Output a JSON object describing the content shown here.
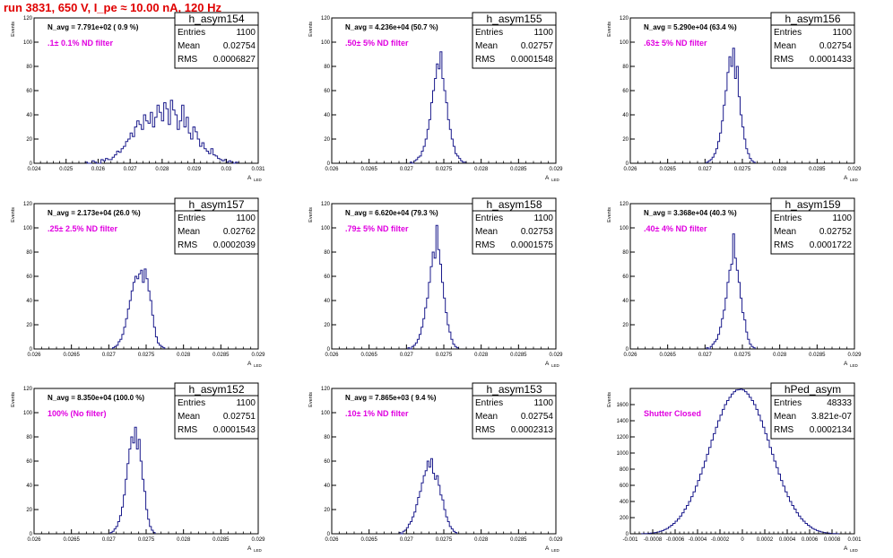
{
  "header": {
    "title": "run 3831,   650 V, I_pe ≈ 10.00 nA, 120 Hz"
  },
  "stat_labels": {
    "entries": "Entries",
    "mean": "Mean",
    "rms": "RMS"
  },
  "axis_labels": {
    "y": "Events",
    "x": "A",
    "x_sub": "LED"
  },
  "colors": {
    "histogram": "#1b1b8c",
    "title": "#e00000",
    "filter": "#e000e0",
    "frame": "#000000"
  },
  "chart_data": [
    {
      "type": "bar",
      "name": "h_asym154",
      "nlabel": "N_avg = 7.791e+02 ( 0.9 %)",
      "filter": ".1± 0.1% ND filter",
      "entries": "1100",
      "mean": "0.02754",
      "rms": "0.0006827",
      "xlim": [
        0.024,
        0.031
      ],
      "ylim": [
        0,
        120
      ],
      "xticks": [
        "0.024",
        "0.025",
        "0.026",
        "0.027",
        "0.028",
        "0.029",
        "0.03",
        "0.031"
      ],
      "xtick_values": [
        0.024,
        0.025,
        0.026,
        0.027,
        0.028,
        0.029,
        0.03,
        0.031
      ],
      "yticks": [
        "0",
        "20",
        "40",
        "60",
        "80",
        "100",
        "120"
      ],
      "bin_start": 0.0256,
      "bin_width": 7e-05,
      "values": [
        1,
        0,
        0,
        2,
        1,
        0,
        0,
        3,
        2,
        4,
        3,
        3,
        5,
        7,
        10,
        9,
        12,
        14,
        18,
        20,
        25,
        22,
        30,
        35,
        32,
        28,
        40,
        35,
        33,
        42,
        30,
        38,
        48,
        42,
        35,
        50,
        45,
        32,
        52,
        44,
        40,
        28,
        35,
        48,
        30,
        38,
        25,
        20,
        30,
        26,
        20,
        14,
        17,
        12,
        10,
        8,
        12,
        7,
        6,
        4,
        3,
        2,
        3,
        1,
        2,
        1,
        0,
        1
      ]
    },
    {
      "type": "bar",
      "name": "h_asym155",
      "nlabel": "N_avg = 4.236e+04 (50.7 %)",
      "filter": ".50± 5% ND filter",
      "entries": "1100",
      "mean": "0.02757",
      "rms": "0.0001548",
      "xlim": [
        0.026,
        0.029
      ],
      "ylim": [
        0,
        120
      ],
      "xticks": [
        "0.026",
        "0.0265",
        "0.027",
        "0.0275",
        "0.028",
        "0.0285",
        "0.029"
      ],
      "xtick_values": [
        0.026,
        0.0265,
        0.027,
        0.0275,
        0.028,
        0.0285,
        0.029
      ],
      "yticks": [
        "0",
        "20",
        "40",
        "60",
        "80",
        "100",
        "120"
      ],
      "bin_start": 0.02705,
      "bin_width": 2.5e-05,
      "values": [
        1,
        0,
        2,
        3,
        5,
        6,
        10,
        14,
        20,
        28,
        36,
        50,
        60,
        70,
        82,
        78,
        92,
        70,
        60,
        50,
        36,
        28,
        20,
        14,
        8,
        6,
        4,
        2,
        1,
        1
      ]
    },
    {
      "type": "bar",
      "name": "h_asym156",
      "nlabel": "N_avg = 5.290e+04 (63.4 %)",
      "filter": ".63± 5% ND filter",
      "entries": "1100",
      "mean": "0.02754",
      "rms": "0.0001433",
      "xlim": [
        0.026,
        0.029
      ],
      "ylim": [
        0,
        120
      ],
      "xticks": [
        "0.026",
        "0.0265",
        "0.027",
        "0.0275",
        "0.028",
        "0.0285",
        "0.029"
      ],
      "xtick_values": [
        0.026,
        0.0265,
        0.027,
        0.0275,
        0.028,
        0.0285,
        0.029
      ],
      "yticks": [
        "0",
        "20",
        "40",
        "60",
        "80",
        "100",
        "120"
      ],
      "bin_start": 0.02702,
      "bin_width": 2.5e-05,
      "values": [
        1,
        2,
        3,
        5,
        8,
        12,
        18,
        25,
        35,
        48,
        60,
        75,
        88,
        80,
        95,
        70,
        80,
        55,
        40,
        30,
        20,
        12,
        8,
        4,
        2,
        1
      ]
    },
    {
      "type": "bar",
      "name": "h_asym157",
      "nlabel": "N_avg = 2.173e+04 (26.0 %)",
      "filter": ".25± 2.5% ND filter",
      "entries": "1100",
      "mean": "0.02762",
      "rms": "0.0002039",
      "xlim": [
        0.026,
        0.029
      ],
      "ylim": [
        0,
        120
      ],
      "xticks": [
        "0.026",
        "0.0265",
        "0.027",
        "0.0275",
        "0.028",
        "0.0285",
        "0.029"
      ],
      "xtick_values": [
        0.026,
        0.0265,
        0.027,
        0.0275,
        0.028,
        0.0285,
        0.029
      ],
      "yticks": [
        "0",
        "20",
        "40",
        "60",
        "80",
        "100",
        "120"
      ],
      "bin_start": 0.02705,
      "bin_width": 2.5e-05,
      "values": [
        1,
        2,
        3,
        6,
        8,
        12,
        18,
        25,
        33,
        40,
        48,
        55,
        60,
        58,
        62,
        65,
        55,
        66,
        58,
        48,
        40,
        28,
        18,
        10,
        5,
        3,
        2,
        1
      ]
    },
    {
      "type": "bar",
      "name": "h_asym158",
      "nlabel": "N_avg = 6.620e+04 (79.3 %)",
      "filter": ".79± 5% ND filter",
      "entries": "1100",
      "mean": "0.02753",
      "rms": "0.0001575",
      "xlim": [
        0.026,
        0.029
      ],
      "ylim": [
        0,
        120
      ],
      "xticks": [
        "0.026",
        "0.0265",
        "0.027",
        "0.0275",
        "0.028",
        "0.0285",
        "0.029"
      ],
      "xtick_values": [
        0.026,
        0.0265,
        0.027,
        0.0275,
        0.028,
        0.0285,
        0.029
      ],
      "yticks": [
        "0",
        "20",
        "40",
        "60",
        "80",
        "100",
        "120"
      ],
      "bin_start": 0.02702,
      "bin_width": 2.5e-05,
      "values": [
        1,
        0,
        2,
        3,
        5,
        8,
        12,
        18,
        25,
        34,
        42,
        55,
        68,
        80,
        75,
        102,
        82,
        70,
        55,
        42,
        30,
        20,
        14,
        8,
        4,
        2,
        1
      ]
    },
    {
      "type": "bar",
      "name": "h_asym159",
      "nlabel": "N_avg = 3.368e+04 (40.3 %)",
      "filter": ".40± 4% ND filter",
      "entries": "1100",
      "mean": "0.02752",
      "rms": "0.0001722",
      "xlim": [
        0.026,
        0.029
      ],
      "ylim": [
        0,
        120
      ],
      "xticks": [
        "0.026",
        "0.0265",
        "0.027",
        "0.0275",
        "0.028",
        "0.0285",
        "0.029"
      ],
      "xtick_values": [
        0.026,
        0.0265,
        0.027,
        0.0275,
        0.028,
        0.0285,
        0.029
      ],
      "yticks": [
        "0",
        "20",
        "40",
        "60",
        "80",
        "100",
        "120"
      ],
      "bin_start": 0.02702,
      "bin_width": 2.5e-05,
      "values": [
        1,
        0,
        2,
        4,
        6,
        8,
        12,
        18,
        25,
        32,
        42,
        55,
        65,
        70,
        95,
        75,
        65,
        55,
        42,
        30,
        24,
        14,
        8,
        4,
        2,
        1
      ]
    },
    {
      "type": "bar",
      "name": "h_asym152",
      "nlabel": "N_avg = 8.350e+04 (100.0 %)",
      "filter": "100% (No filter)",
      "entries": "1100",
      "mean": "0.02751",
      "rms": "0.0001543",
      "xlim": [
        0.026,
        0.029
      ],
      "ylim": [
        0,
        120
      ],
      "xticks": [
        "0.026",
        "0.0265",
        "0.027",
        "0.0275",
        "0.028",
        "0.0285",
        "0.029"
      ],
      "xtick_values": [
        0.026,
        0.0265,
        0.027,
        0.0275,
        0.028,
        0.0285,
        0.029
      ],
      "yticks": [
        "0",
        "20",
        "40",
        "60",
        "80",
        "100",
        "120"
      ],
      "bin_start": 0.02702,
      "bin_width": 2.5e-05,
      "values": [
        1,
        2,
        4,
        6,
        10,
        15,
        22,
        32,
        45,
        58,
        70,
        80,
        75,
        88,
        70,
        78,
        60,
        45,
        35,
        20,
        12,
        6,
        3,
        1
      ]
    },
    {
      "type": "bar",
      "name": "h_asym153",
      "nlabel": "N_avg = 7.865e+03 ( 9.4 %)",
      "filter": ".10± 1% ND filter",
      "entries": "1100",
      "mean": "0.02754",
      "rms": "0.0002313",
      "xlim": [
        0.026,
        0.029
      ],
      "ylim": [
        0,
        120
      ],
      "xticks": [
        "0.026",
        "0.0265",
        "0.027",
        "0.0275",
        "0.028",
        "0.0285",
        "0.029"
      ],
      "xtick_values": [
        0.026,
        0.0265,
        0.027,
        0.0275,
        0.028,
        0.0285,
        0.029
      ],
      "yticks": [
        "0",
        "20",
        "40",
        "60",
        "80",
        "100",
        "120"
      ],
      "bin_start": 0.0269,
      "bin_width": 2.5e-05,
      "values": [
        1,
        0,
        2,
        3,
        5,
        8,
        10,
        14,
        18,
        24,
        30,
        35,
        42,
        48,
        52,
        60,
        55,
        62,
        50,
        45,
        48,
        40,
        32,
        28,
        20,
        14,
        10,
        6,
        4,
        2,
        1
      ]
    },
    {
      "type": "bar",
      "name": "hPed_asym",
      "nlabel": "",
      "filter": "Shutter Closed",
      "entries": "48333",
      "mean": "3.821e-07",
      "rms": "0.0002134",
      "xlim": [
        -0.001,
        0.001
      ],
      "ylim": [
        0,
        1800
      ],
      "xticks": [
        "-0.001",
        "-0.0008",
        "-0.0006",
        "-0.0004",
        "-0.0002",
        "0",
        "0.0002",
        "0.0004",
        "0.0006",
        "0.0008",
        "0.001"
      ],
      "xtick_values": [
        -0.001,
        -0.0008,
        -0.0006,
        -0.0004,
        -0.0002,
        0,
        0.0002,
        0.0004,
        0.0006,
        0.0008,
        0.001
      ],
      "yticks": [
        "0",
        "200",
        "400",
        "600",
        "800",
        "1000",
        "1200",
        "1400",
        "1600"
      ],
      "ytick_values": [
        0,
        200,
        400,
        600,
        800,
        1000,
        1200,
        1400,
        1600
      ],
      "bin_start": -0.0009,
      "bin_width": 2e-05,
      "values": [
        1,
        2,
        3,
        5,
        8,
        12,
        16,
        22,
        30,
        40,
        52,
        66,
        85,
        105,
        128,
        155,
        185,
        220,
        260,
        305,
        350,
        400,
        460,
        520,
        590,
        660,
        740,
        820,
        900,
        985,
        1070,
        1160,
        1240,
        1320,
        1400,
        1470,
        1540,
        1600,
        1650,
        1690,
        1730,
        1760,
        1780,
        1785,
        1790,
        1780,
        1760,
        1730,
        1690,
        1650,
        1600,
        1540,
        1470,
        1400,
        1320,
        1240,
        1160,
        1070,
        985,
        900,
        820,
        740,
        660,
        590,
        520,
        460,
        400,
        350,
        305,
        260,
        220,
        185,
        155,
        128,
        105,
        85,
        66,
        52,
        40,
        30,
        22,
        16,
        12,
        8,
        5,
        3,
        2,
        1
      ]
    }
  ]
}
